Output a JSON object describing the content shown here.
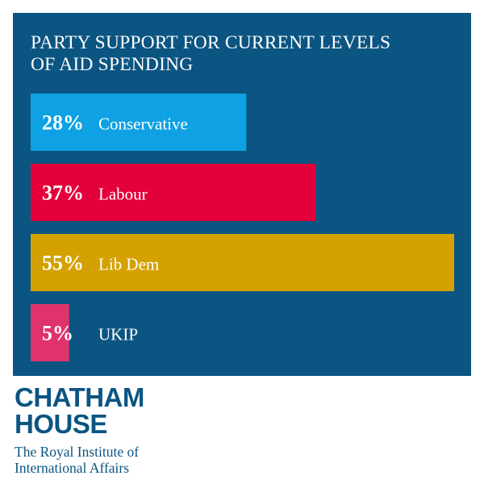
{
  "chart_data": {
    "type": "bar",
    "orientation": "horizontal",
    "title_lines": [
      "PARTY SUPPORT FOR CURRENT LEVELS",
      "OF AID SPENDING"
    ],
    "categories": [
      "Conservative",
      "Labour",
      "Lib Dem",
      "UKIP"
    ],
    "values": [
      28,
      37,
      55,
      5
    ],
    "value_labels": [
      "28%",
      "37%",
      "55%",
      "5%"
    ],
    "unit": "%",
    "colors": [
      "#0ea1e3",
      "#e3003b",
      "#d4a100",
      "#e0336c"
    ],
    "background": "#0b5582",
    "grid": false,
    "legend": "none"
  },
  "logo": {
    "word_lines": [
      "CHATHAM",
      "HOUSE"
    ],
    "sub_lines": [
      "The Royal Institute of",
      "International Affairs"
    ],
    "color": "#0b5582"
  }
}
